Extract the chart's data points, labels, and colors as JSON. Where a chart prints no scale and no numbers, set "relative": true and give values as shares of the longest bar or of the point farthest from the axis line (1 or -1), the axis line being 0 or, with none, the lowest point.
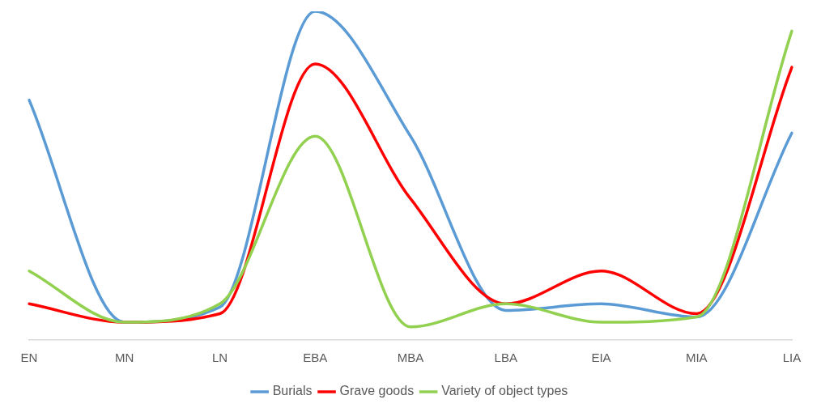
{
  "chart_data": {
    "type": "line",
    "relative": true,
    "categories": [
      "EN",
      "MN",
      "LN",
      "EBA",
      "MBA",
      "LBA",
      "EIA",
      "MIA",
      "LIA"
    ],
    "grid": false,
    "legend": "bottom",
    "marker": "none",
    "line_style": "solid",
    "series": [
      {
        "name": "Burials",
        "color": "#5b9bd5",
        "values": [
          0.73,
          0.054,
          0.1,
          1,
          0.62,
          0.09,
          0.11,
          0.07,
          0.63
        ]
      },
      {
        "name": "Grave goods",
        "color": "#ff0000",
        "values": [
          0.11,
          0.054,
          0.08,
          0.84,
          0.43,
          0.11,
          0.21,
          0.08,
          0.83
        ]
      },
      {
        "name": "Variety of object types",
        "color": "#92d050",
        "values": [
          0.21,
          0.054,
          0.11,
          0.62,
          0.04,
          0.11,
          0.054,
          0.07,
          0.94
        ]
      }
    ]
  }
}
